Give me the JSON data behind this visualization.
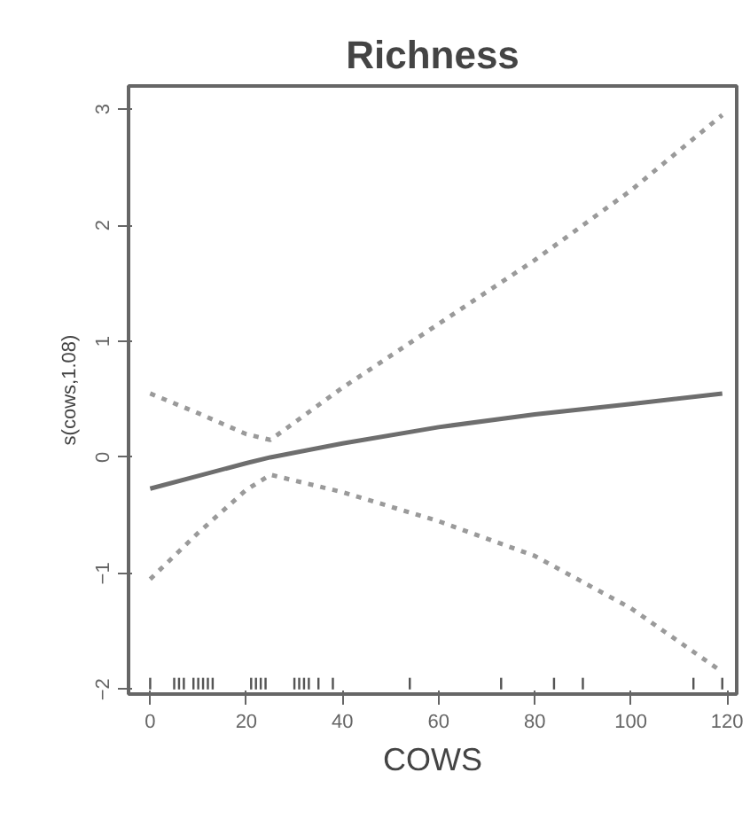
{
  "chart_data": {
    "type": "line",
    "title": "Richness",
    "xlabel": "COWS",
    "ylabel": "s(cows,1.08)",
    "xlim": [
      -4.5,
      122
    ],
    "ylim": [
      -2.04,
      3.2
    ],
    "xticks": [
      0,
      20,
      40,
      60,
      80,
      100,
      120
    ],
    "yticks": [
      -2,
      -1,
      0,
      1,
      2,
      3
    ],
    "grid": false,
    "marker": "none",
    "series": [
      {
        "color": "#6e6e6e",
        "line_style": "solid",
        "x": [
          0,
          10,
          20,
          25,
          40,
          60,
          80,
          100,
          119
        ],
        "values": [
          -0.27,
          -0.16,
          -0.05,
          0.0,
          0.12,
          0.26,
          0.37,
          0.46,
          0.55
        ]
      },
      {
        "color": "#9a9a9a",
        "line_style": "dotted",
        "x": [
          0,
          10,
          20,
          25,
          40,
          60,
          80,
          100,
          119
        ],
        "values": [
          0.55,
          0.38,
          0.2,
          0.15,
          0.6,
          1.15,
          1.7,
          2.3,
          2.95
        ]
      },
      {
        "color": "#9a9a9a",
        "line_style": "dotted",
        "x": [
          0,
          10,
          20,
          25,
          40,
          60,
          80,
          100,
          119
        ],
        "values": [
          -1.05,
          -0.65,
          -0.28,
          -0.15,
          -0.3,
          -0.55,
          -0.85,
          -1.3,
          -1.85
        ]
      },
      {
        "type": "bar",
        "color": "#555555",
        "base": [
          -2,
          -2,
          -2,
          -2,
          -2,
          -2,
          -2,
          -2,
          -2,
          -2,
          -2,
          -2,
          -2,
          -2,
          -2,
          -2,
          -2,
          -2,
          -2,
          -2,
          -2,
          -2,
          -2,
          -2,
          -2
        ],
        "x": [
          0,
          5,
          6,
          7,
          9,
          10,
          11,
          12,
          13,
          21,
          22,
          23,
          24,
          30,
          31,
          32,
          33,
          35,
          38,
          54,
          73,
          84,
          90,
          113,
          119
        ],
        "values": [
          0.1,
          0.1,
          0.1,
          0.1,
          0.1,
          0.1,
          0.1,
          0.1,
          0.1,
          0.1,
          0.1,
          0.1,
          0.1,
          0.1,
          0.1,
          0.1,
          0.1,
          0.1,
          0.1,
          0.1,
          0.1,
          0.1,
          0.1,
          0.1,
          0.1
        ]
      }
    ]
  }
}
